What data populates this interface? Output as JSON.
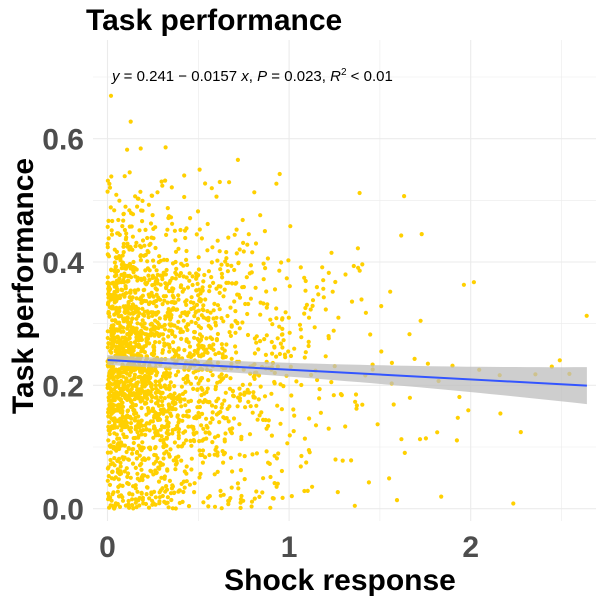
{
  "chart_data": {
    "type": "scatter",
    "title": "Task performance",
    "xlabel": "Shock response",
    "ylabel": "Task performance",
    "xlim": [
      -0.08,
      2.69
    ],
    "ylim": [
      -0.02,
      0.76
    ],
    "x_ticks": [
      0,
      1,
      2
    ],
    "x_tick_labels": [
      "0",
      "1",
      "2"
    ],
    "y_ticks": [
      0.0,
      0.2,
      0.4,
      0.6
    ],
    "y_tick_labels": [
      "0.0",
      "0.2",
      "0.4",
      "0.6"
    ],
    "grid": true,
    "legend": "none",
    "annotation": {
      "y_prefix": "y",
      "eq_mid": " = 0.241 − 0.0157 ",
      "x_var": "x",
      "p_sep": ", ",
      "p_var": "P",
      "p_val": " = 0.023, ",
      "r_var": "R",
      "r_sup": "2",
      "r_val": " < 0.01"
    },
    "regression": {
      "intercept": 0.241,
      "slope": -0.0157,
      "x_range": [
        0.0,
        2.64
      ],
      "ci_half_width_at_x_min": 0.008,
      "ci_half_width_at_x_max": 0.03
    },
    "points": {
      "count": 2300,
      "x_range": [
        0.0,
        2.64
      ],
      "y_range": [
        0.0,
        0.73
      ],
      "note": ""
    },
    "colors": {
      "points": "#FFD000",
      "line": "#3355FF",
      "ci_band": "#BEBEBE",
      "grid": "#EBEBEB"
    }
  }
}
